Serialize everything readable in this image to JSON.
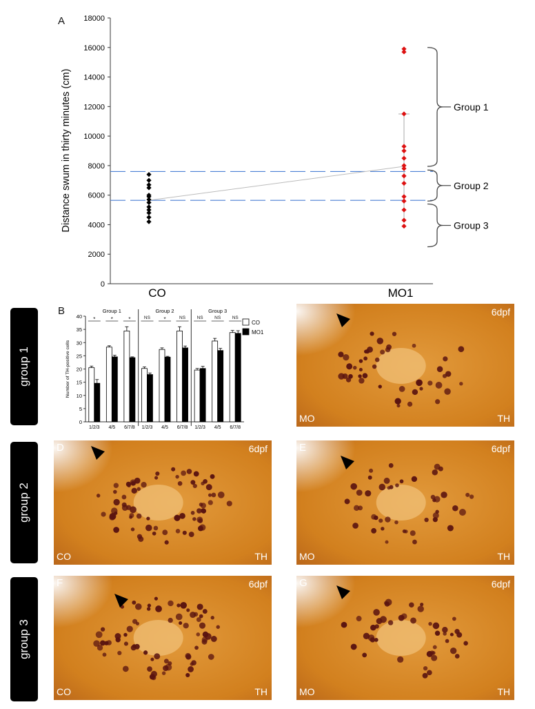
{
  "panels": {
    "A": "A",
    "B": "B",
    "C": "C",
    "D": "D",
    "E": "E",
    "F": "F",
    "G": "G"
  },
  "groups": [
    "group 1",
    "group 2",
    "group 3"
  ],
  "scatter": {
    "ylabel": "Distance swum in thirty minutes (cm)",
    "yticks": [
      0,
      2000,
      4000,
      6000,
      8000,
      10000,
      12000,
      14000,
      16000,
      18000
    ],
    "ylim": [
      0,
      18000
    ],
    "categories": [
      "CO",
      "MO1"
    ],
    "co_points": [
      4200,
      4500,
      4800,
      5000,
      5200,
      5500,
      5700,
      5900,
      6000,
      6500,
      6700,
      7000,
      7400
    ],
    "mo_points": [
      3900,
      4300,
      5000,
      5600,
      5900,
      6800,
      7300,
      7800,
      8000,
      8500,
      9000,
      9300,
      11500,
      15700,
      15900
    ],
    "co_mean": 5650,
    "mo_mean": 7950,
    "mo_err": [
      4400,
      11500
    ],
    "thresholds": [
      7600,
      5650
    ],
    "brackets": [
      {
        "label": "Group 1",
        "from": 7950,
        "to": 16000
      },
      {
        "label": "Group 2",
        "from": 5600,
        "to": 7700
      },
      {
        "label": "Group 3",
        "from": 2500,
        "to": 5400
      }
    ]
  },
  "chart_data": {
    "type": "bar",
    "title": "",
    "ylabel": "Number of TH-positive cells",
    "ylim": [
      0,
      40
    ],
    "yticks": [
      0,
      5,
      10,
      15,
      20,
      25,
      30,
      35,
      40
    ],
    "categories": [
      "1/2/3",
      "4/5",
      "6/7/8",
      "1/2/3",
      "4/5",
      "6/7/8",
      "1/2/3",
      "4/5",
      "6/7/8"
    ],
    "groups": [
      "Group 1",
      "Group 2",
      "Group 3"
    ],
    "significance": [
      "*",
      "*",
      "*",
      "NS",
      "*",
      "NS",
      "NS",
      "NS",
      "NS"
    ],
    "series": [
      {
        "name": "CO",
        "values": [
          20.5,
          28.3,
          34.4,
          20.2,
          27.4,
          34.4,
          19.6,
          30.6,
          33.8
        ],
        "errors": [
          0.6,
          0.5,
          1.6,
          0.6,
          0.6,
          1.6,
          0.6,
          1.0,
          0.8
        ]
      },
      {
        "name": "MO1",
        "values": [
          14.6,
          24.6,
          24.3,
          17.9,
          24.5,
          28.0,
          20.2,
          27.0,
          33.5
        ],
        "errors": [
          1.4,
          0.6,
          0.3,
          0.6,
          0.3,
          0.7,
          0.8,
          0.8,
          1.0
        ]
      }
    ]
  },
  "images": {
    "C": {
      "age": "6dpf",
      "cond": "MO",
      "stain": "TH"
    },
    "D": {
      "age": "6dpf",
      "cond": "CO",
      "stain": "TH"
    },
    "E": {
      "age": "6dpf",
      "cond": "MO",
      "stain": "TH"
    },
    "F": {
      "age": "6dpf",
      "cond": "CO",
      "stain": "TH"
    },
    "G": {
      "age": "6dpf",
      "cond": "MO",
      "stain": "TH"
    }
  },
  "colors": {
    "co_point": "#000000",
    "mo_point": "#dd1111",
    "threshold": "#4a7fd4",
    "tissue": "#d2801e",
    "neuron": "#5a1410"
  }
}
